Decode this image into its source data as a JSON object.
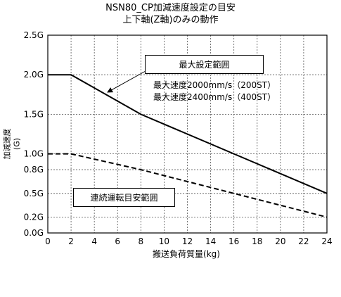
{
  "chart_data": {
    "type": "line",
    "title": "NSN80_CP加減速度設定の目安",
    "subtitle": "上下軸(Z軸)のみの動作",
    "xlabel": "搬送負荷質量(kg)",
    "ylabel": "加減速度 (G)",
    "xlim": [
      0,
      24
    ],
    "ylim": [
      0,
      2.5
    ],
    "x_ticks": [
      0,
      2,
      4,
      6,
      8,
      10,
      12,
      14,
      16,
      18,
      20,
      22,
      24
    ],
    "y_ticks": [
      0,
      0.2,
      0.5,
      0.8,
      1.0,
      1.5,
      2.0,
      2.5
    ],
    "y_tick_labels": [
      "0.0G",
      "0.2G",
      "0.5G",
      "0.8G",
      "1.0G",
      "1.5G",
      "2.0G",
      "2.5G"
    ],
    "grid": true,
    "series": [
      {
        "name": "最大設定範囲",
        "style": "solid",
        "color": "#000000",
        "x": [
          0,
          2,
          8,
          24
        ],
        "y": [
          2.0,
          2.0,
          1.5,
          0.5
        ]
      },
      {
        "name": "連続運転目安範囲",
        "style": "dashed",
        "color": "#000000",
        "x": [
          0,
          2,
          8,
          24
        ],
        "y": [
          1.0,
          1.0,
          0.8,
          0.2
        ]
      }
    ],
    "annotations": {
      "max_range_label": "最大設定範囲",
      "continuous_range_label": "連続運転目安範囲",
      "speed_line_1": "最大速度2000mm/s（200ST）",
      "speed_line_2": "最大速度2400mm/s（400ST）"
    }
  }
}
